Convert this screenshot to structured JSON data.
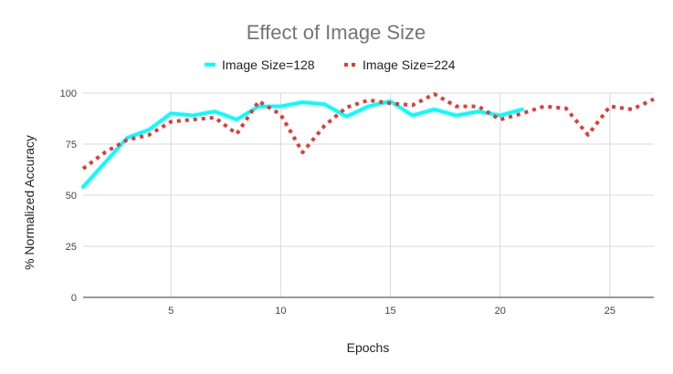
{
  "chart_data": {
    "type": "line",
    "title": "Effect of Image Size",
    "xlabel": "Epochs",
    "ylabel": "% Normalized Accuracy",
    "xlim": [
      1,
      27
    ],
    "ylim": [
      0,
      100
    ],
    "xticks": [
      5,
      10,
      15,
      20,
      25
    ],
    "yticks": [
      0,
      25,
      50,
      75,
      100
    ],
    "grid": true,
    "legend_position": "top",
    "series": [
      {
        "name": "Image Size=128",
        "color": "#00ffff",
        "style": "solid",
        "x": [
          1,
          2,
          3,
          4,
          5,
          6,
          7,
          8,
          9,
          10,
          11,
          12,
          13,
          14,
          15,
          16,
          17,
          18,
          19,
          20,
          21
        ],
        "y": [
          54,
          66,
          78,
          82,
          90,
          89,
          91,
          87,
          93.5,
          93.5,
          95.5,
          94.5,
          88.5,
          93.5,
          96,
          89,
          92,
          89,
          91,
          89,
          92
        ]
      },
      {
        "name": "Image Size=224",
        "color": "#e53935",
        "style": "dotted",
        "x": [
          1,
          2,
          3,
          4,
          5,
          6,
          7,
          8,
          9,
          10,
          11,
          12,
          13,
          14,
          15,
          16,
          17,
          18,
          19,
          20,
          21,
          22,
          23,
          24,
          25,
          26,
          27
        ],
        "y": [
          63,
          71,
          77,
          79.5,
          86,
          87,
          88,
          80,
          96,
          89.5,
          71,
          84,
          93,
          96.5,
          95,
          94,
          99.5,
          93.5,
          93.5,
          87,
          90,
          93.5,
          92.5,
          79.5,
          93.5,
          92,
          97
        ]
      }
    ]
  }
}
